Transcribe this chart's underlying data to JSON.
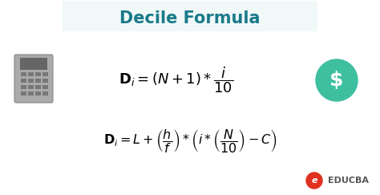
{
  "title": "Decile Formula",
  "title_color": "#1a7a8a",
  "title_fontsize": 15,
  "bg_color": "#ffffff",
  "formula_color": "#000000",
  "formula1_fontsize": 13,
  "formula2_fontsize": 11.5,
  "educba_text": "EDUCBA",
  "educba_color": "#555555",
  "teal_circle_color": "#3dbfa0",
  "dollar_color": "#ffffff",
  "header_bg": "#f0f8f8",
  "calc_body_color": "#aaaaaa",
  "calc_screen_color": "#666666",
  "calc_btn_color": "#777777",
  "educba_red": "#e03020"
}
